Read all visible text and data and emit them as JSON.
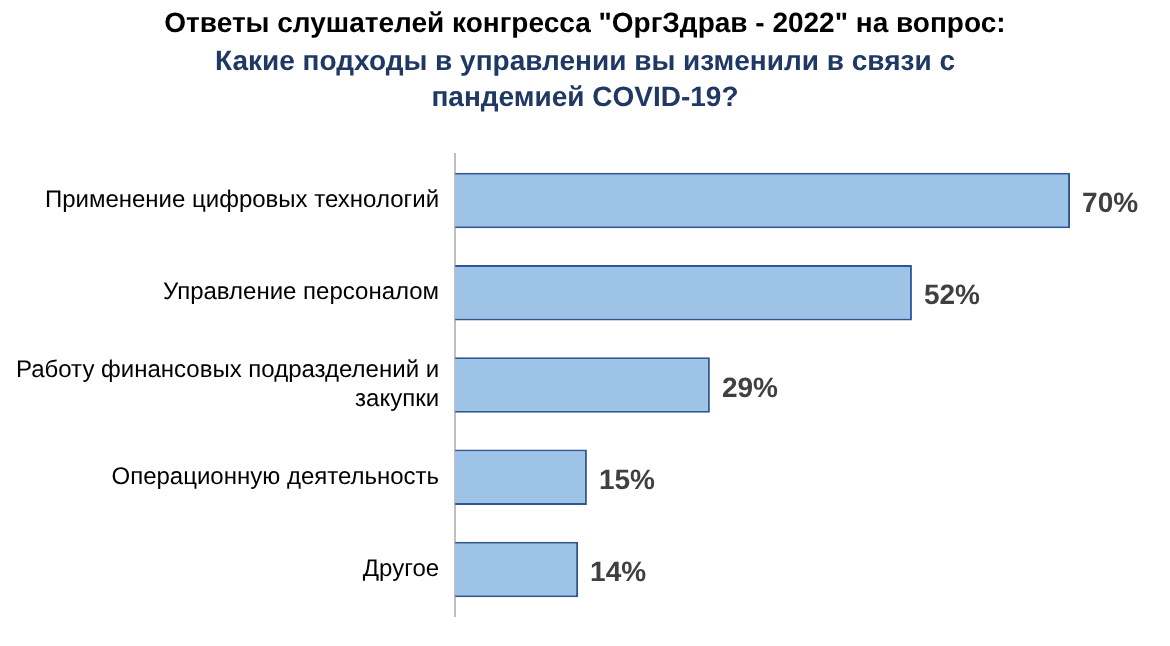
{
  "chart_data": {
    "type": "bar",
    "orientation": "horizontal",
    "title": "Ответы слушателей конгресса \"ОргЗдрав - 2022\" на вопрос:",
    "subtitle": "Какие подходы в управлении вы изменили в связи с пандемией COVID-19?",
    "categories": [
      "Применение цифровых технологий",
      "Управление персоналом",
      "Работу финансовых подразделений и закупки",
      "Операционную деятельность",
      "Другое"
    ],
    "values": [
      70,
      52,
      29,
      15,
      14
    ],
    "value_labels": [
      "70%",
      "52%",
      "29%",
      "15%",
      "14%"
    ],
    "color": "#9dc3e6",
    "tick_labels": "y",
    "legend": false
  }
}
